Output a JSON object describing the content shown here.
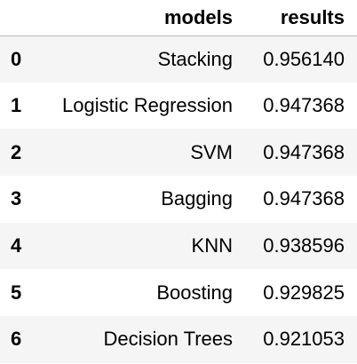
{
  "table": {
    "columns": {
      "index": "",
      "models": "models",
      "results": "results"
    },
    "rows": [
      {
        "index": "0",
        "model": "Stacking",
        "result": "0.956140"
      },
      {
        "index": "1",
        "model": "Logistic Regression",
        "result": "0.947368"
      },
      {
        "index": "2",
        "model": "SVM",
        "result": "0.947368"
      },
      {
        "index": "3",
        "model": "Bagging",
        "result": "0.947368"
      },
      {
        "index": "4",
        "model": "KNN",
        "result": "0.938596"
      },
      {
        "index": "5",
        "model": "Boosting",
        "result": "0.929825"
      },
      {
        "index": "6",
        "model": "Decision Trees",
        "result": "0.921053"
      }
    ],
    "colors": {
      "stripe": "#f5f5f5",
      "background": "#ffffff",
      "header_rule": "#bdbdbd"
    }
  }
}
